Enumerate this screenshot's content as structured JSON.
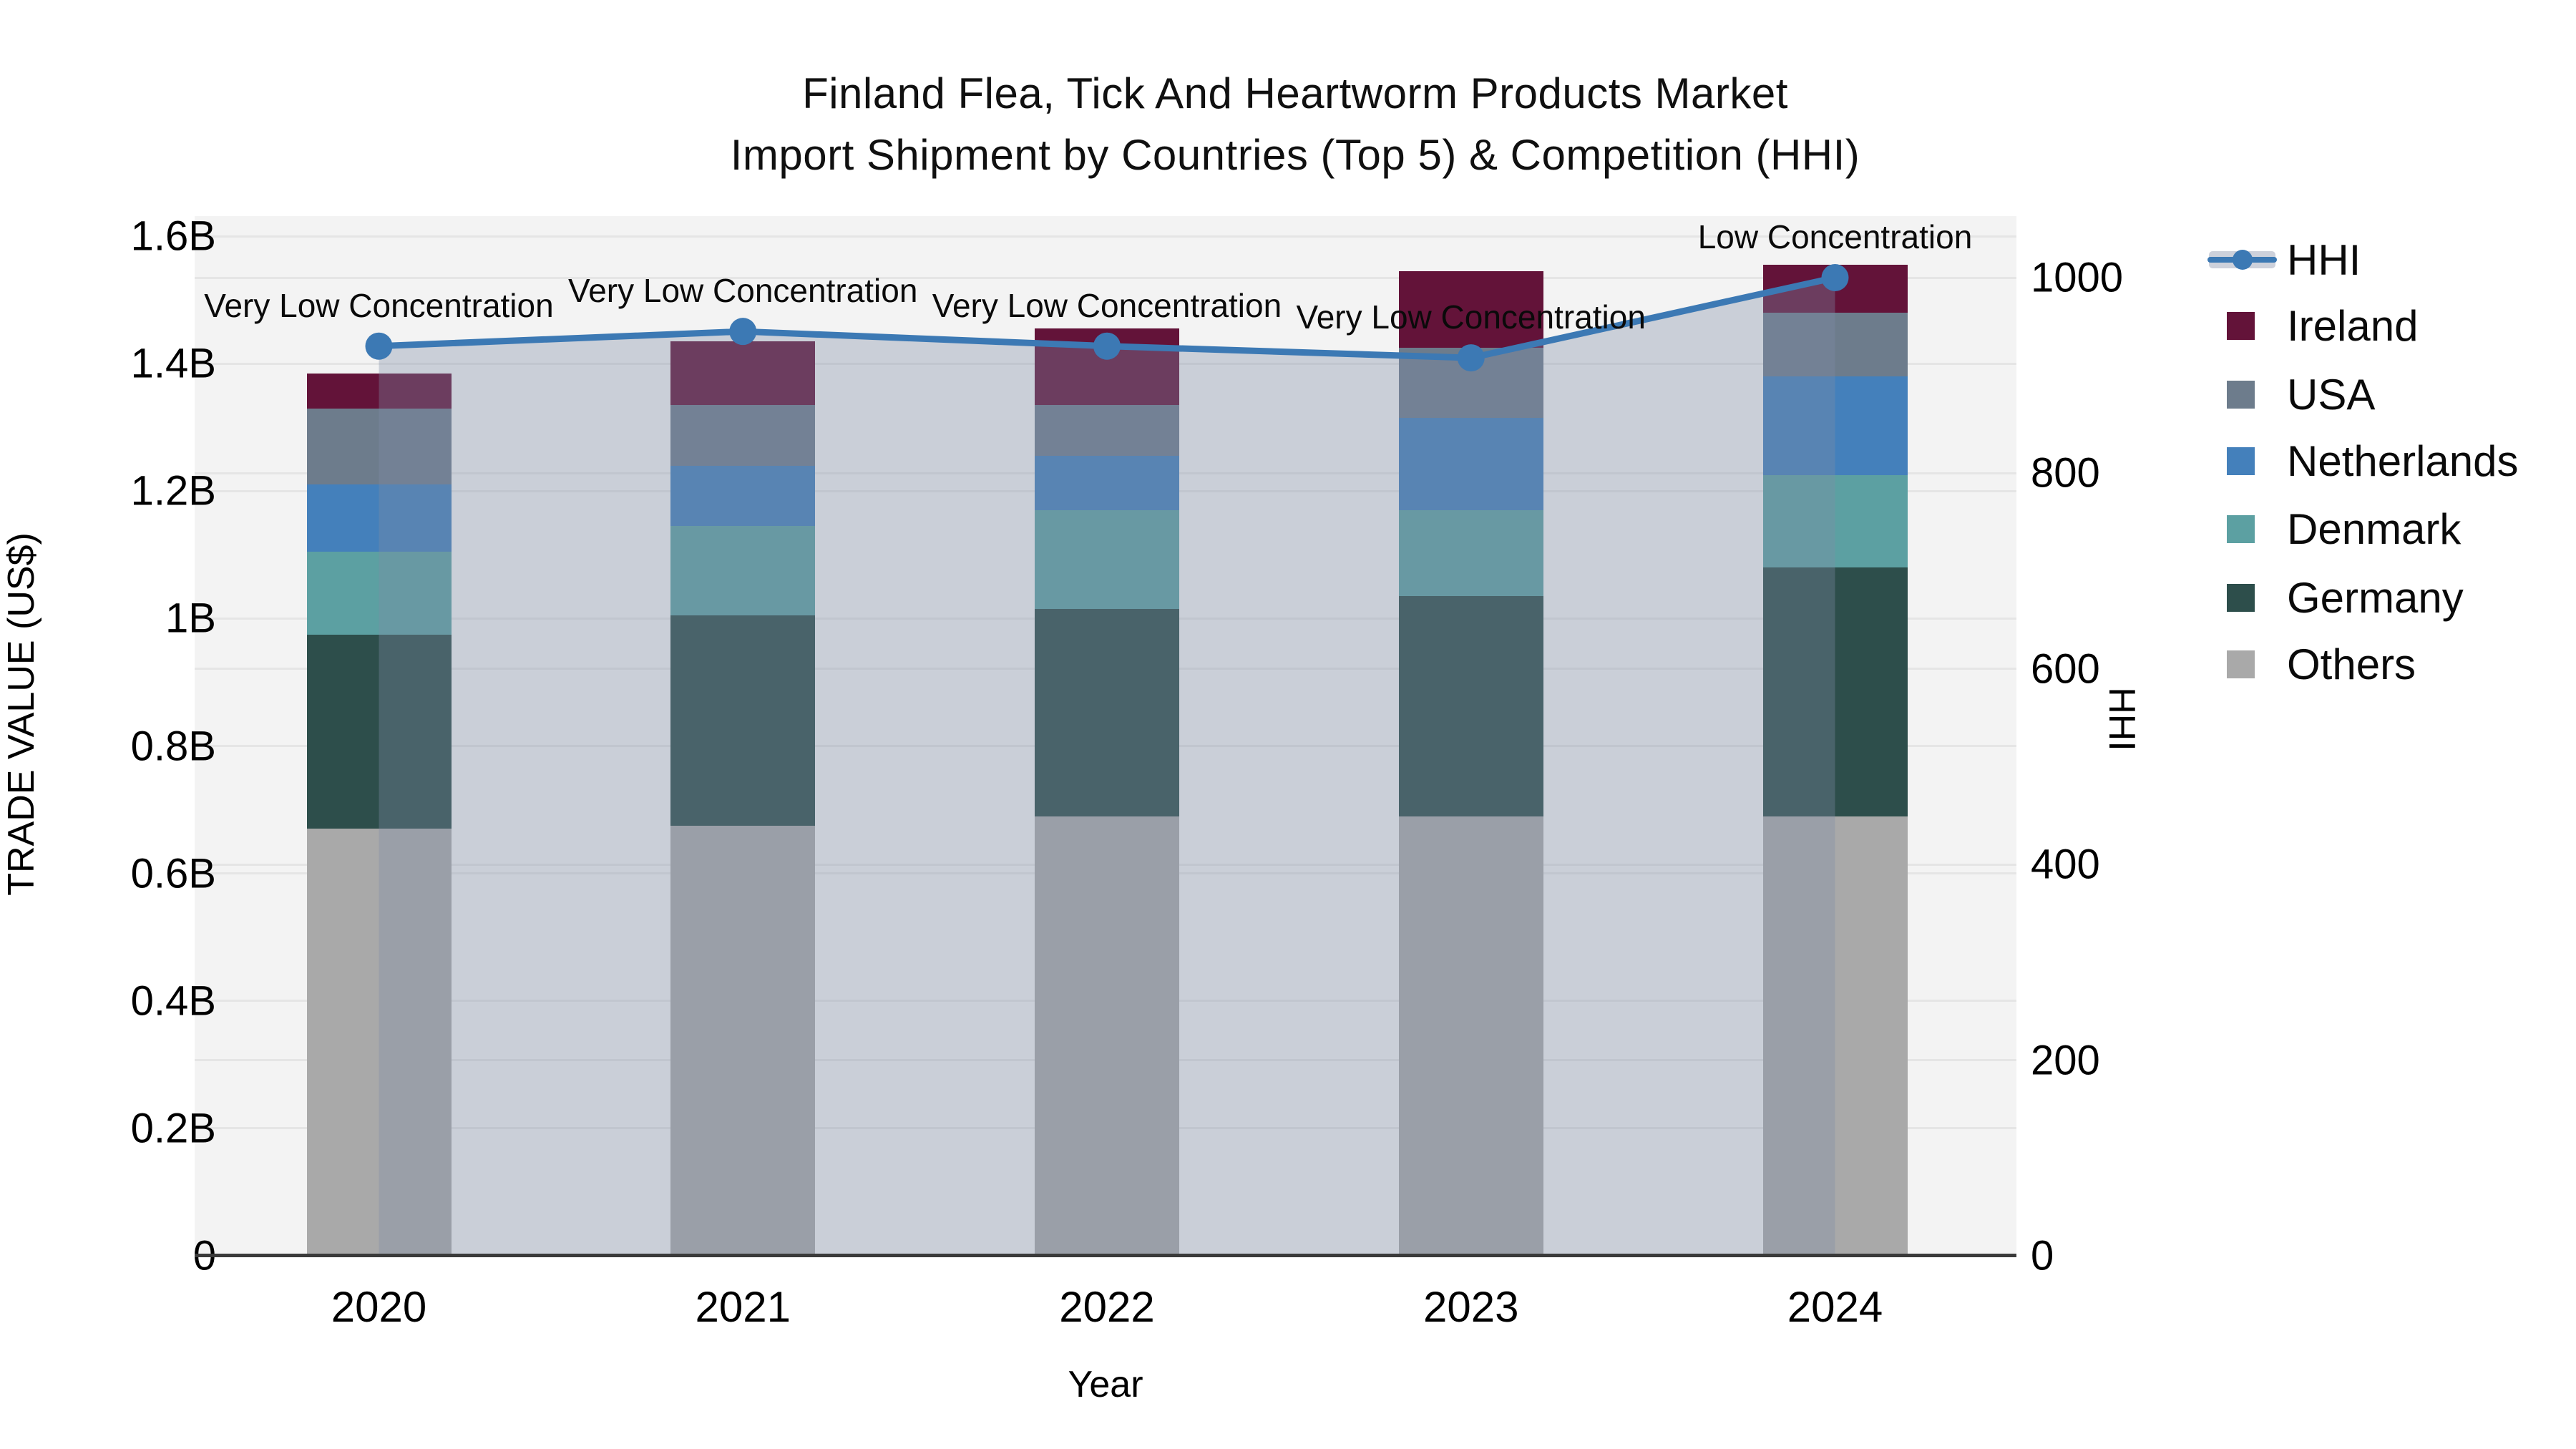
{
  "title": {
    "line1": "Finland Flea, Tick And Heartworm Products Market",
    "line2": "Import Shipment by Countries (Top 5) & Competition (HHI)"
  },
  "axes": {
    "x": {
      "title": "Year",
      "ticks": [
        "2020",
        "2021",
        "2022",
        "2023",
        "2024"
      ]
    },
    "y_left": {
      "title": "TRADE VALUE (US$)",
      "ticks": [
        "0",
        "0.2B",
        "0.4B",
        "0.6B",
        "0.8B",
        "1B",
        "1.2B",
        "1.4B",
        "1.6B"
      ],
      "range": [
        0,
        1.6
      ]
    },
    "y_right": {
      "title": "HHI",
      "ticks": [
        "0",
        "200",
        "400",
        "600",
        "800",
        "1000"
      ],
      "range": [
        0,
        1062
      ]
    }
  },
  "legend": {
    "items": [
      {
        "label": "HHI",
        "type": "line",
        "color": "#3c79b4"
      },
      {
        "label": "Ireland",
        "type": "swatch",
        "color": "#631339"
      },
      {
        "label": "USA",
        "type": "swatch",
        "color": "#6d7c8c"
      },
      {
        "label": "Netherlands",
        "type": "swatch",
        "color": "#4480bb"
      },
      {
        "label": "Denmark",
        "type": "swatch",
        "color": "#5ca0a2"
      },
      {
        "label": "Germany",
        "type": "swatch",
        "color": "#2d4e4b"
      },
      {
        "label": "Others",
        "type": "swatch",
        "color": "#a9a9a9"
      }
    ]
  },
  "chart_data": {
    "type": "bar",
    "subtype": "stacked-bars-with-line",
    "categories": [
      "2020",
      "2021",
      "2022",
      "2023",
      "2024"
    ],
    "value_unit": "billion US$",
    "series": [
      {
        "name": "Others",
        "color": "#a9a9a9",
        "values": [
          0.67,
          0.675,
          0.69,
          0.69,
          0.69
        ]
      },
      {
        "name": "Germany",
        "color": "#2d4e4b",
        "values": [
          0.305,
          0.33,
          0.325,
          0.345,
          0.39
        ]
      },
      {
        "name": "Denmark",
        "color": "#5ca0a2",
        "values": [
          0.13,
          0.14,
          0.155,
          0.135,
          0.145
        ]
      },
      {
        "name": "Netherlands",
        "color": "#4480bb",
        "values": [
          0.105,
          0.095,
          0.085,
          0.145,
          0.155
        ]
      },
      {
        "name": "USA",
        "color": "#6d7c8c",
        "values": [
          0.12,
          0.095,
          0.08,
          0.11,
          0.1
        ]
      },
      {
        "name": "Ireland",
        "color": "#631339",
        "values": [
          0.055,
          0.1,
          0.12,
          0.12,
          0.075
        ]
      }
    ],
    "bar_totals": [
      1.385,
      1.435,
      1.455,
      1.545,
      1.555
    ],
    "line_series": {
      "name": "HHI",
      "axis": "right",
      "color": "#3c79b4",
      "area_fill": "rgba(127,140,166,0.35)",
      "values": [
        930,
        945,
        930,
        918,
        1000
      ]
    },
    "annotations": [
      {
        "category": "2020",
        "text": "Very Low Concentration"
      },
      {
        "category": "2021",
        "text": "Very Low Concentration"
      },
      {
        "category": "2022",
        "text": "Very Low Concentration"
      },
      {
        "category": "2023",
        "text": "Very Low Concentration"
      },
      {
        "category": "2024",
        "text": "Low Concentration"
      }
    ],
    "title": "Finland Flea, Tick And Heartworm Products Market Import Shipment by Countries (Top 5) & Competition (HHI)",
    "xlabel": "Year",
    "ylabel_left": "TRADE VALUE (US$)",
    "ylabel_right": "HHI",
    "ylim_left": [
      0,
      1.6
    ],
    "ylim_right": [
      0,
      1062
    ],
    "grid": true,
    "legend_position": "right"
  }
}
